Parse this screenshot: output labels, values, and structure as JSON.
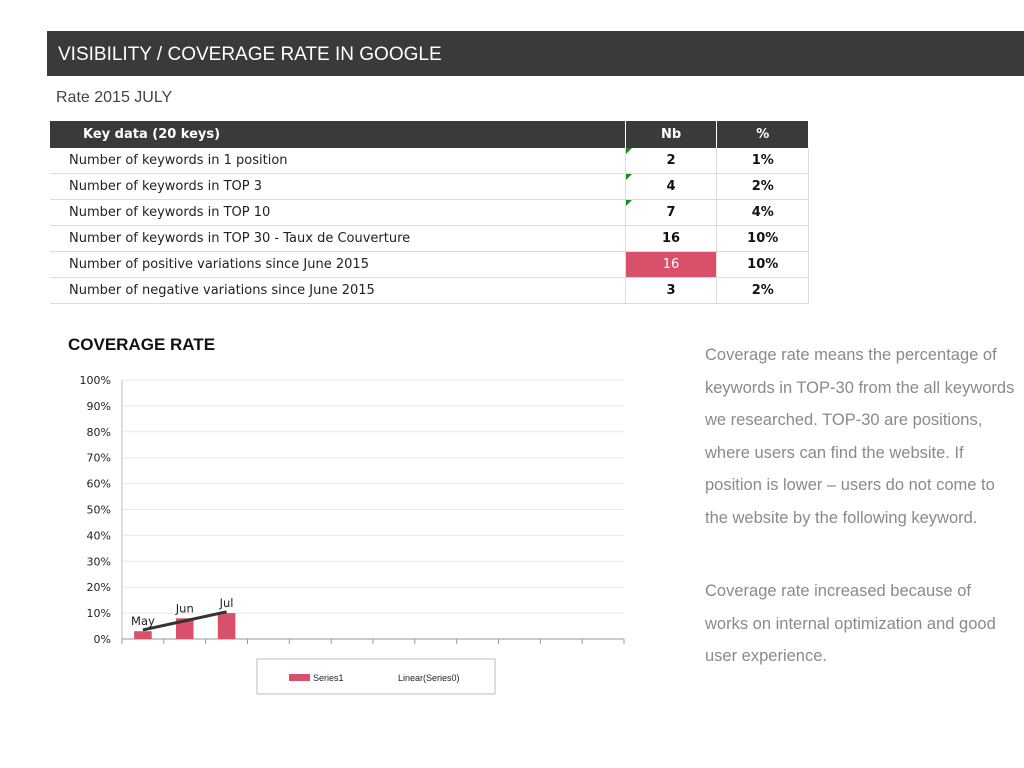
{
  "header": {
    "title": "VISIBILITY / COVERAGE RATE IN GOOGLE"
  },
  "subtitle": "Rate 2015 JULY",
  "table": {
    "columns": [
      "Key data (20 keys)",
      "Nb",
      "%"
    ],
    "rows": [
      {
        "label": "Number of keywords in 1 position",
        "nb": "2",
        "pct": "1%",
        "flag": true,
        "highlight": false
      },
      {
        "label": "Number of keywords in TOP 3",
        "nb": "4",
        "pct": "2%",
        "flag": true,
        "highlight": false
      },
      {
        "label": "Number of keywords in TOP 10",
        "nb": "7",
        "pct": "4%",
        "flag": true,
        "highlight": false
      },
      {
        "label": "Number of keywords in TOP 30 - Taux de Couverture",
        "nb": "16",
        "pct": "10%",
        "flag": false,
        "highlight": false
      },
      {
        "label": "Number of positive variations since June 2015",
        "nb": "16",
        "pct": "10%",
        "flag": false,
        "highlight": true
      },
      {
        "label": "Number of negative variations since June 2015",
        "nb": "3",
        "pct": "2%",
        "flag": false,
        "highlight": false
      }
    ]
  },
  "colors": {
    "bar": "#d9506a",
    "trend": "#333333",
    "header": "#3a3a3a",
    "highlight": "#d9506a",
    "flag": "#1a8a1a"
  },
  "chart_data": {
    "type": "bar",
    "title": "COVERAGE RATE",
    "categories": [
      "May",
      "Jun",
      "Jul"
    ],
    "slots": 12,
    "series": [
      {
        "name": "Series1",
        "values": [
          3,
          8,
          10
        ]
      },
      {
        "name": "Linear(Series0)",
        "type": "line",
        "values": [
          3.5,
          7,
          10.5
        ]
      }
    ],
    "ylim": [
      0,
      100
    ],
    "yticks": [
      "0%",
      "10%",
      "20%",
      "30%",
      "40%",
      "50%",
      "60%",
      "70%",
      "80%",
      "90%",
      "100%"
    ],
    "grid": true,
    "legend": "bottom"
  },
  "description": {
    "p1": "Coverage rate means the percentage of keywords in TOP-30 from the all keywords we researched. TOP-30 are positions, where users can find the website. If position is lower – users do not come to the website by the following keyword.",
    "p2": "Coverage rate increased because of works on internal optimization and good user experience."
  }
}
